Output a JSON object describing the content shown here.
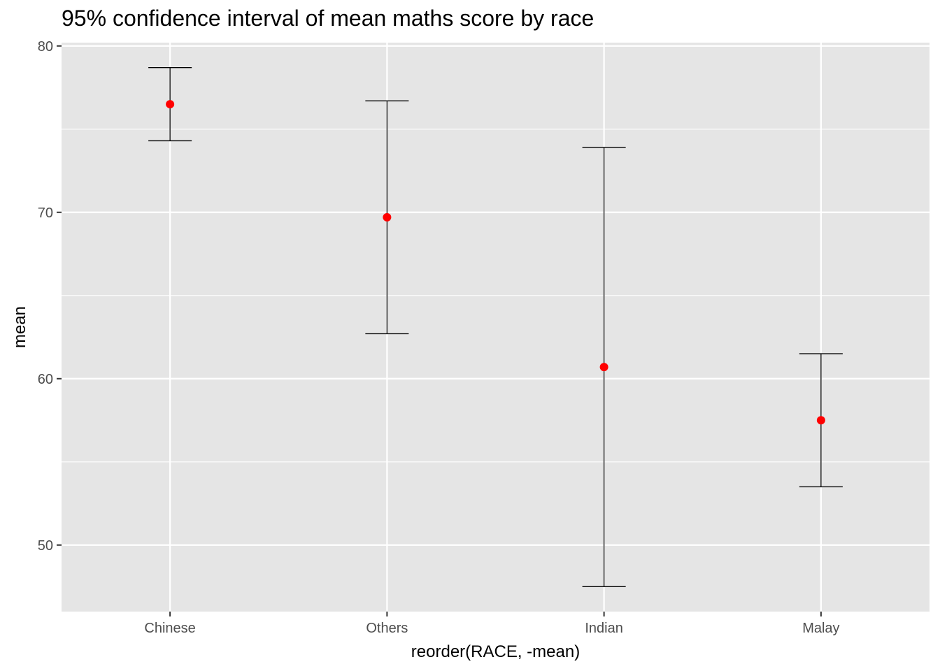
{
  "chart_data": {
    "type": "errorbar",
    "title": "95% confidence interval of mean maths score by race",
    "xlabel": "reorder(RACE, -mean)",
    "ylabel": "mean",
    "categories": [
      "Chinese",
      "Others",
      "Indian",
      "Malay"
    ],
    "mean": [
      76.5,
      69.7,
      60.7,
      57.5
    ],
    "lower": [
      74.3,
      62.7,
      47.5,
      53.5
    ],
    "upper": [
      78.7,
      76.7,
      73.9,
      61.5
    ],
    "ylim": [
      46.0,
      80.2
    ],
    "yticks": [
      50,
      60,
      70,
      80
    ],
    "ytick_labels": [
      "50",
      "60",
      "70",
      "80"
    ],
    "grid": true,
    "colors": {
      "panel_background": "#e5e5e5",
      "grid": "#ffffff",
      "point": "#ff0000",
      "errorbar": "#000000"
    }
  }
}
